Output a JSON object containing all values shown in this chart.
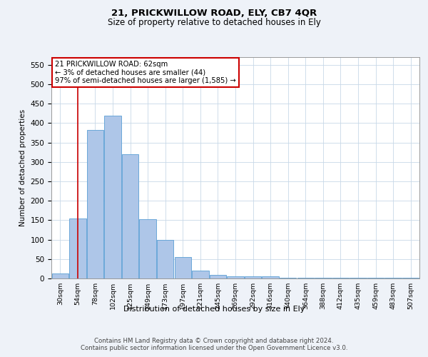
{
  "title1": "21, PRICKWILLOW ROAD, ELY, CB7 4QR",
  "title2": "Size of property relative to detached houses in Ely",
  "xlabel": "Distribution of detached houses by size in Ely",
  "ylabel": "Number of detached properties",
  "bar_labels": [
    "30sqm",
    "54sqm",
    "78sqm",
    "102sqm",
    "125sqm",
    "149sqm",
    "173sqm",
    "197sqm",
    "221sqm",
    "245sqm",
    "269sqm",
    "292sqm",
    "316sqm",
    "340sqm",
    "364sqm",
    "388sqm",
    "412sqm",
    "435sqm",
    "459sqm",
    "483sqm",
    "507sqm"
  ],
  "bar_values": [
    13,
    155,
    382,
    420,
    320,
    152,
    100,
    55,
    20,
    10,
    5,
    5,
    5,
    2,
    2,
    2,
    2,
    1,
    1,
    1,
    2
  ],
  "bar_color": "#aec6e8",
  "bar_edge_color": "#5a9fd4",
  "grid_color": "#c8d8e8",
  "annotation_line1": "21 PRICKWILLOW ROAD: 62sqm",
  "annotation_line2": "← 3% of detached houses are smaller (44)",
  "annotation_line3": "97% of semi-detached houses are larger (1,585) →",
  "annotation_box_color": "#ffffff",
  "annotation_box_edge_color": "#cc0000",
  "red_line_x": 1,
  "ylim": [
    0,
    570
  ],
  "yticks": [
    0,
    50,
    100,
    150,
    200,
    250,
    300,
    350,
    400,
    450,
    500,
    550
  ],
  "footer_text": "Contains HM Land Registry data © Crown copyright and database right 2024.\nContains public sector information licensed under the Open Government Licence v3.0.",
  "background_color": "#eef2f8",
  "plot_bg_color": "#ffffff"
}
